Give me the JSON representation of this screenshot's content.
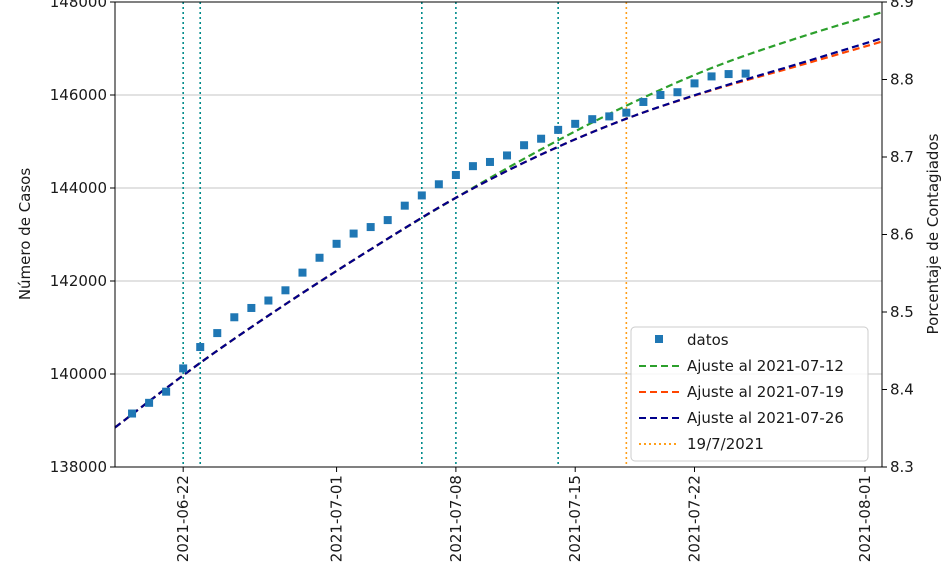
{
  "chart_data": {
    "type": "line",
    "title": "",
    "xlabel": "",
    "ylabel": "Número de Casos",
    "ylabel_right": "Porcentaje de Contagiados",
    "x_start": "2021-06-18",
    "x_end": "2021-08-02",
    "ylim": [
      138000,
      148000
    ],
    "ylim_right": [
      8.3,
      8.9
    ],
    "x_ticks": [
      "2021-06-22",
      "2021-07-01",
      "2021-07-08",
      "2021-07-15",
      "2021-07-22",
      "2021-08-01"
    ],
    "y_ticks": [
      "138000",
      "140000",
      "142000",
      "144000",
      "146000",
      "148000"
    ],
    "y_ticks_right": [
      "8.3",
      "8.4",
      "8.5",
      "8.6",
      "8.7",
      "8.8",
      "8.9"
    ],
    "grid": "horizontal",
    "legend_position": "lower-right",
    "vlines_teal": [
      "2021-06-22",
      "2021-06-23",
      "2021-07-06",
      "2021-07-08",
      "2021-07-14"
    ],
    "vline_orange": {
      "date": "2021-07-18",
      "label": "19/7/2021"
    },
    "scatter": {
      "name": "datos",
      "x": [
        "2021-06-19",
        "2021-06-20",
        "2021-06-21",
        "2021-06-22",
        "2021-06-23",
        "2021-06-24",
        "2021-06-25",
        "2021-06-26",
        "2021-06-27",
        "2021-06-28",
        "2021-06-29",
        "2021-06-30",
        "2021-07-01",
        "2021-07-02",
        "2021-07-03",
        "2021-07-04",
        "2021-07-05",
        "2021-07-06",
        "2021-07-07",
        "2021-07-08",
        "2021-07-09",
        "2021-07-10",
        "2021-07-11",
        "2021-07-12",
        "2021-07-13",
        "2021-07-14",
        "2021-07-15",
        "2021-07-16",
        "2021-07-17",
        "2021-07-18",
        "2021-07-19",
        "2021-07-20",
        "2021-07-21",
        "2021-07-22",
        "2021-07-23",
        "2021-07-24",
        "2021-07-25"
      ],
      "y": [
        139150,
        139380,
        139620,
        140120,
        140580,
        140880,
        141220,
        141420,
        141580,
        141800,
        142180,
        142500,
        142800,
        143020,
        143160,
        143310,
        143620,
        143840,
        144080,
        144280,
        144470,
        144560,
        144700,
        144920,
        145060,
        145250,
        145380,
        145480,
        145540,
        145620,
        145850,
        146000,
        146060,
        146250,
        146400,
        146450,
        146460
      ]
    },
    "series": [
      {
        "name": "Ajuste al 2021-07-12",
        "color": "#2ca02c",
        "style": "dashed",
        "x": [
          "2021-06-18",
          "2021-06-23",
          "2021-06-28",
          "2021-07-03",
          "2021-07-08",
          "2021-07-13",
          "2021-07-18",
          "2021-07-23",
          "2021-07-28",
          "2021-08-02"
        ],
        "y": [
          138850,
          140240,
          141500,
          142680,
          143790,
          144830,
          145770,
          146580,
          147220,
          147780
        ]
      },
      {
        "name": "Ajuste al 2021-07-19",
        "color": "#ff4500",
        "style": "dashed",
        "x": [
          "2021-06-18",
          "2021-06-23",
          "2021-06-28",
          "2021-07-03",
          "2021-07-08",
          "2021-07-13",
          "2021-07-18",
          "2021-07-23",
          "2021-07-28",
          "2021-08-02"
        ],
        "y": [
          138850,
          140240,
          141500,
          142680,
          143790,
          144720,
          145490,
          146100,
          146620,
          147150
        ]
      },
      {
        "name": "Ajuste al 2021-07-26",
        "color": "#00008b",
        "style": "dashed",
        "x": [
          "2021-06-18",
          "2021-06-23",
          "2021-06-28",
          "2021-07-03",
          "2021-07-08",
          "2021-07-13",
          "2021-07-18",
          "2021-07-23",
          "2021-07-28",
          "2021-08-02"
        ],
        "y": [
          138850,
          140240,
          141500,
          142680,
          143790,
          144720,
          145490,
          146110,
          146660,
          147220
        ]
      }
    ]
  },
  "legend": {
    "datos": "datos",
    "fit1": "Ajuste al 2021-07-12",
    "fit2": "Ajuste al 2021-07-19",
    "fit3": "Ajuste al 2021-07-26",
    "vline": "19/7/2021"
  },
  "colors": {
    "scatter": "#1f77b4",
    "teal_vline": "#008b8b",
    "orange_vline": "#ff9f1a",
    "grid": "#b0b0b0"
  }
}
